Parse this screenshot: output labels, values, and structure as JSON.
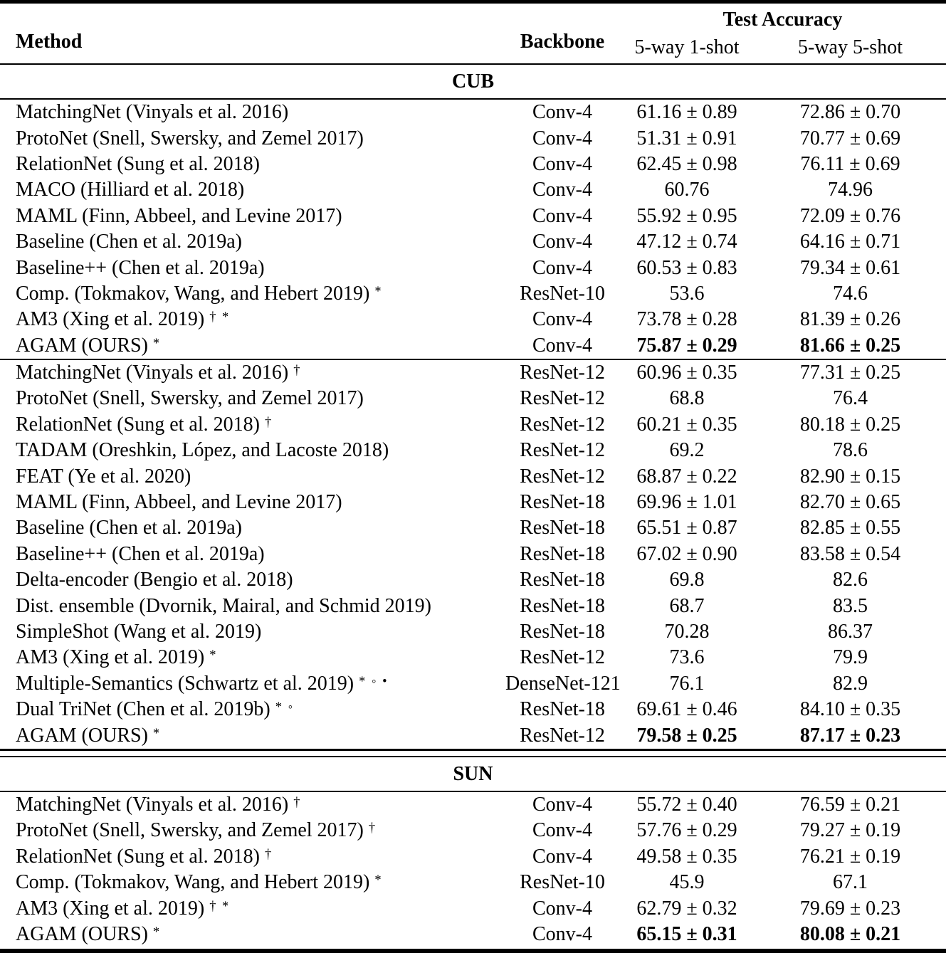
{
  "style": {
    "text_color": "#000000",
    "background_color": "#ffffff"
  },
  "table": {
    "columns": {
      "method": "Method",
      "backbone": "Backbone",
      "accuracy_group": "Test Accuracy",
      "one_shot": "5-way 1-shot",
      "five_shot": "5-way 5-shot"
    },
    "sections": [
      {
        "title": "CUB",
        "groups": [
          [
            {
              "method": "MatchingNet (Vinyals et al. 2016)",
              "marks": "",
              "backbone": "Conv-4",
              "one_shot": "61.16 ± 0.89",
              "five_shot": "72.86 ± 0.70",
              "bold": false
            },
            {
              "method": "ProtoNet (Snell, Swersky, and Zemel 2017)",
              "marks": "",
              "backbone": "Conv-4",
              "one_shot": "51.31 ± 0.91",
              "five_shot": "70.77 ± 0.69",
              "bold": false
            },
            {
              "method": "RelationNet (Sung et al. 2018)",
              "marks": "",
              "backbone": "Conv-4",
              "one_shot": "62.45 ± 0.98",
              "five_shot": "76.11 ± 0.69",
              "bold": false
            },
            {
              "method": "MACO (Hilliard et al. 2018)",
              "marks": "",
              "backbone": "Conv-4",
              "one_shot": "60.76",
              "five_shot": "74.96",
              "bold": false
            },
            {
              "method": "MAML (Finn, Abbeel, and Levine 2017)",
              "marks": "",
              "backbone": "Conv-4",
              "one_shot": "55.92 ± 0.95",
              "five_shot": "72.09 ± 0.76",
              "bold": false
            },
            {
              "method": "Baseline (Chen et al. 2019a)",
              "marks": "",
              "backbone": "Conv-4",
              "one_shot": "47.12 ± 0.74",
              "five_shot": "64.16 ± 0.71",
              "bold": false
            },
            {
              "method": "Baseline++ (Chen et al. 2019a)",
              "marks": "",
              "backbone": "Conv-4",
              "one_shot": "60.53 ± 0.83",
              "five_shot": "79.34 ± 0.61",
              "bold": false
            },
            {
              "method": "Comp. (Tokmakov, Wang, and Hebert 2019)",
              "marks": "*",
              "backbone": "ResNet-10",
              "one_shot": "53.6",
              "five_shot": "74.6",
              "bold": false
            },
            {
              "method": "AM3 (Xing et al. 2019)",
              "marks": "† *",
              "backbone": "Conv-4",
              "one_shot": "73.78 ± 0.28",
              "five_shot": "81.39 ± 0.26",
              "bold": false
            },
            {
              "method": "AGAM (OURS)",
              "marks": "*",
              "backbone": "Conv-4",
              "one_shot": "75.87 ± 0.29",
              "five_shot": "81.66 ± 0.25",
              "bold": true
            }
          ],
          [
            {
              "method": "MatchingNet (Vinyals et al. 2016)",
              "marks": "†",
              "backbone": "ResNet-12",
              "one_shot": "60.96 ± 0.35",
              "five_shot": "77.31 ± 0.25",
              "bold": false
            },
            {
              "method": "ProtoNet (Snell, Swersky, and Zemel 2017)",
              "marks": "",
              "backbone": "ResNet-12",
              "one_shot": "68.8",
              "five_shot": "76.4",
              "bold": false
            },
            {
              "method": "RelationNet (Sung et al. 2018)",
              "marks": "†",
              "backbone": "ResNet-12",
              "one_shot": "60.21 ± 0.35",
              "five_shot": "80.18 ± 0.25",
              "bold": false
            },
            {
              "method": "TADAM (Oreshkin, López, and Lacoste 2018)",
              "marks": "",
              "backbone": "ResNet-12",
              "one_shot": "69.2",
              "five_shot": "78.6",
              "bold": false
            },
            {
              "method": "FEAT (Ye et al. 2020)",
              "marks": "",
              "backbone": "ResNet-12",
              "one_shot": "68.87 ± 0.22",
              "five_shot": "82.90 ± 0.15",
              "bold": false
            },
            {
              "method": "MAML (Finn, Abbeel, and Levine 2017)",
              "marks": "",
              "backbone": "ResNet-18",
              "one_shot": "69.96 ± 1.01",
              "five_shot": "82.70 ± 0.65",
              "bold": false
            },
            {
              "method": "Baseline (Chen et al. 2019a)",
              "marks": "",
              "backbone": "ResNet-18",
              "one_shot": "65.51 ± 0.87",
              "five_shot": "82.85 ± 0.55",
              "bold": false
            },
            {
              "method": "Baseline++ (Chen et al. 2019a)",
              "marks": "",
              "backbone": "ResNet-18",
              "one_shot": "67.02 ± 0.90",
              "five_shot": "83.58 ± 0.54",
              "bold": false
            },
            {
              "method": "Delta-encoder (Bengio et al. 2018)",
              "marks": "",
              "backbone": "ResNet-18",
              "one_shot": "69.8",
              "five_shot": "82.6",
              "bold": false
            },
            {
              "method": "Dist. ensemble (Dvornik, Mairal, and Schmid 2019)",
              "marks": "",
              "backbone": "ResNet-18",
              "one_shot": "68.7",
              "five_shot": "83.5",
              "bold": false
            },
            {
              "method": "SimpleShot (Wang et al. 2019)",
              "marks": "",
              "backbone": "ResNet-18",
              "one_shot": "70.28",
              "five_shot": "86.37",
              "bold": false
            },
            {
              "method": "AM3 (Xing et al. 2019)",
              "marks": "*",
              "backbone": "ResNet-12",
              "one_shot": "73.6",
              "five_shot": "79.9",
              "bold": false
            },
            {
              "method": "Multiple-Semantics (Schwartz et al. 2019)",
              "marks": "* ◦ •",
              "backbone": "DenseNet-121",
              "one_shot": "76.1",
              "five_shot": "82.9",
              "bold": false
            },
            {
              "method": "Dual TriNet (Chen et al. 2019b)",
              "marks": "* ◦",
              "backbone": "ResNet-18",
              "one_shot": "69.61 ± 0.46",
              "five_shot": "84.10 ± 0.35",
              "bold": false
            },
            {
              "method": "AGAM (OURS)",
              "marks": "*",
              "backbone": "ResNet-12",
              "one_shot": "79.58 ± 0.25",
              "five_shot": "87.17 ± 0.23",
              "bold": true
            }
          ]
        ]
      },
      {
        "title": "SUN",
        "groups": [
          [
            {
              "method": "MatchingNet (Vinyals et al. 2016)",
              "marks": "†",
              "backbone": "Conv-4",
              "one_shot": "55.72 ± 0.40",
              "five_shot": "76.59 ± 0.21",
              "bold": false
            },
            {
              "method": "ProtoNet (Snell, Swersky, and Zemel 2017)",
              "marks": "†",
              "backbone": "Conv-4",
              "one_shot": "57.76 ± 0.29",
              "five_shot": "79.27 ± 0.19",
              "bold": false
            },
            {
              "method": "RelationNet (Sung et al. 2018)",
              "marks": "†",
              "backbone": "Conv-4",
              "one_shot": "49.58 ± 0.35",
              "five_shot": "76.21 ± 0.19",
              "bold": false
            },
            {
              "method": "Comp. (Tokmakov, Wang, and Hebert 2019)",
              "marks": "*",
              "backbone": "ResNet-10",
              "one_shot": "45.9",
              "five_shot": "67.1",
              "bold": false
            },
            {
              "method": "AM3 (Xing et al. 2019)",
              "marks": "† *",
              "backbone": "Conv-4",
              "one_shot": "62.79 ± 0.32",
              "five_shot": "79.69 ± 0.23",
              "bold": false
            },
            {
              "method": "AGAM (OURS)",
              "marks": "*",
              "backbone": "Conv-4",
              "one_shot": "65.15 ± 0.31",
              "five_shot": "80.08 ± 0.21",
              "bold": true
            }
          ]
        ]
      }
    ]
  }
}
